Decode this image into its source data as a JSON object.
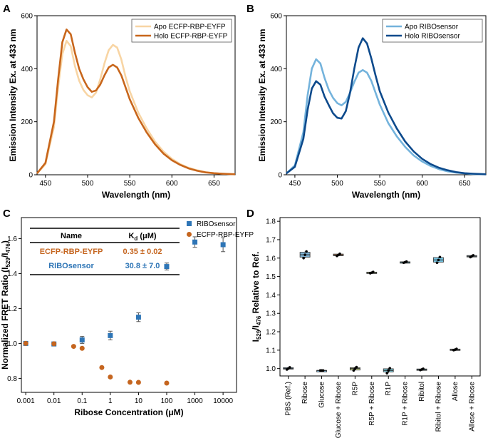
{
  "colors": {
    "apo_ecfp": "#f8d5a4",
    "holo_ecfp": "#c8661b",
    "apo_ribo": "#74b3dc",
    "holo_ribo": "#0d4a8c",
    "ribo_marker": "#2e75b6",
    "ecfp_marker": "#c5651f"
  },
  "chart_data": [
    {
      "panel": "A",
      "type": "line",
      "xlabel": "Wavelength (nm)",
      "ylabel": "Emission Intensity Ex. at 433 nm",
      "xlim": [
        440,
        675
      ],
      "ylim": [
        0,
        600
      ],
      "xticks": [
        "450",
        "500",
        "550",
        "600",
        "650"
      ],
      "yticks": [
        "0",
        "200",
        "400",
        "600"
      ],
      "legend": "top-right",
      "series": [
        {
          "name": "Apo ECFP-RBP-EYFP",
          "color": "apo_ecfp",
          "x": [
            440,
            450,
            460,
            465,
            470,
            475,
            480,
            485,
            490,
            495,
            500,
            505,
            510,
            515,
            520,
            525,
            530,
            535,
            540,
            545,
            550,
            560,
            570,
            580,
            590,
            600,
            610,
            620,
            630,
            640,
            650,
            660,
            675
          ],
          "y": [
            5,
            40,
            180,
            330,
            455,
            505,
            485,
            410,
            355,
            320,
            300,
            292,
            310,
            360,
            420,
            470,
            490,
            480,
            435,
            370,
            315,
            235,
            175,
            125,
            88,
            60,
            40,
            26,
            17,
            10,
            6,
            4,
            2
          ]
        },
        {
          "name": "Holo ECFP-RBP-EYFP",
          "color": "holo_ecfp",
          "x": [
            440,
            450,
            460,
            465,
            470,
            475,
            480,
            485,
            490,
            495,
            500,
            505,
            510,
            515,
            520,
            525,
            530,
            535,
            540,
            545,
            550,
            560,
            570,
            580,
            590,
            600,
            610,
            620,
            630,
            640,
            650,
            660,
            675
          ],
          "y": [
            5,
            45,
            200,
            360,
            500,
            548,
            530,
            460,
            400,
            360,
            330,
            313,
            318,
            340,
            375,
            405,
            415,
            405,
            375,
            330,
            285,
            215,
            160,
            115,
            80,
            55,
            37,
            24,
            15,
            9,
            6,
            4,
            2
          ]
        }
      ]
    },
    {
      "panel": "B",
      "type": "line",
      "xlabel": "Wavelength (nm)",
      "ylabel": "Emission Intensity Ex. at 433 nm",
      "xlim": [
        440,
        675
      ],
      "ylim": [
        0,
        600
      ],
      "xticks": [
        "450",
        "500",
        "550",
        "600",
        "650"
      ],
      "yticks": [
        "0",
        "200",
        "400",
        "600"
      ],
      "legend": "top-right",
      "series": [
        {
          "name": "Apo RIBOsensor",
          "color": "apo_ribo",
          "x": [
            440,
            450,
            460,
            465,
            470,
            475,
            480,
            485,
            490,
            495,
            500,
            505,
            510,
            515,
            520,
            525,
            530,
            535,
            540,
            545,
            550,
            560,
            570,
            580,
            590,
            600,
            610,
            620,
            630,
            640,
            650,
            660,
            675
          ],
          "y": [
            5,
            35,
            160,
            300,
            400,
            436,
            420,
            365,
            320,
            290,
            270,
            262,
            275,
            310,
            350,
            385,
            395,
            385,
            355,
            310,
            265,
            195,
            145,
            105,
            73,
            50,
            33,
            21,
            13,
            8,
            5,
            3,
            2
          ]
        },
        {
          "name": "Holo RIBOsensor",
          "color": "holo_ribo",
          "x": [
            440,
            450,
            460,
            465,
            470,
            475,
            480,
            485,
            490,
            495,
            500,
            505,
            510,
            515,
            520,
            525,
            530,
            535,
            540,
            545,
            550,
            560,
            570,
            580,
            590,
            600,
            610,
            620,
            630,
            640,
            650,
            660,
            675
          ],
          "y": [
            5,
            30,
            135,
            245,
            325,
            353,
            340,
            295,
            262,
            232,
            215,
            212,
            240,
            310,
            400,
            480,
            515,
            495,
            440,
            375,
            315,
            235,
            175,
            125,
            88,
            60,
            40,
            26,
            17,
            10,
            6,
            4,
            2
          ]
        }
      ]
    },
    {
      "panel": "C",
      "type": "scatter",
      "xlabel": "Ribose Concentration (μM)",
      "ylabel_main": "Normalized FRET Ratio (I",
      "ylabel_sub1": "529",
      "ylabel_mid": "/I",
      "ylabel_sub2": "476",
      "ylabel_end": ")",
      "xscale": "log",
      "xlim": [
        0.0007,
        30000
      ],
      "ylim": [
        0.72,
        1.72
      ],
      "xticks": [
        "0.001",
        "0.01",
        "0.1",
        "1",
        "10",
        "100",
        "1000",
        "10000"
      ],
      "yticks": [
        "0.8",
        "1.0",
        "1.2",
        "1.4",
        "1.6"
      ],
      "legend": "top-right",
      "table": {
        "header_name": "Name",
        "header_kd_main": "K",
        "header_kd_sub": "d",
        "header_kd_end": " (μM)",
        "rows": [
          {
            "name": "ECFP-RBP-EYFP",
            "kd": "0.35 ± 0.02",
            "color": "ecfp_marker"
          },
          {
            "name": "RIBOsensor",
            "kd": "30.8 ± 7.0",
            "color": "ribo_marker"
          }
        ]
      },
      "series": [
        {
          "name": "RIBOsensor",
          "marker": "square",
          "color": "ribo_marker",
          "x": [
            0.001,
            0.01,
            0.1,
            1,
            10,
            100,
            1000,
            10000
          ],
          "y": [
            1.0,
            0.997,
            1.02,
            1.045,
            1.15,
            1.44,
            1.58,
            1.565
          ],
          "err": [
            0.005,
            0.01,
            0.02,
            0.025,
            0.025,
            0.02,
            0.03,
            0.04
          ]
        },
        {
          "name": "ECFP-RBP-EYFP",
          "marker": "circle",
          "color": "ecfp_marker",
          "x": [
            0.001,
            0.01,
            0.05,
            0.1,
            0.5,
            1,
            5,
            10,
            100
          ],
          "y": [
            1.0,
            0.998,
            0.983,
            0.972,
            0.862,
            0.808,
            0.778,
            0.777,
            0.773
          ],
          "err": [
            0,
            0,
            0,
            0,
            0,
            0,
            0,
            0,
            0
          ]
        }
      ]
    },
    {
      "panel": "D",
      "type": "box",
      "ylabel_main": "I",
      "ylabel_sub1": "529",
      "ylabel_mid": "/I",
      "ylabel_sub2": "476",
      "ylabel_end": " Relative to Ref.",
      "ylim": [
        0.96,
        1.82
      ],
      "yticks": [
        "1.0",
        "1.1",
        "1.2",
        "1.3",
        "1.4",
        "1.5",
        "1.6",
        "1.7",
        "1.8"
      ],
      "categories": [
        "PBS (Ref.)",
        "Ribose",
        "Glucose",
        "Glucose + Ribose",
        "R5P",
        "R5P + Ribose",
        "R1P",
        "R1P + Ribose",
        "Ribitol",
        "Ribitol + Ribose",
        "Allose",
        "Allose + Ribose"
      ],
      "boxes": [
        {
          "min": 0.995,
          "q1": 0.997,
          "median": 1.0,
          "q3": 1.005,
          "max": 1.007,
          "color": "#7fb3d5"
        },
        {
          "min": 1.6,
          "q1": 1.605,
          "median": 1.618,
          "q3": 1.632,
          "max": 1.636,
          "color": "#7fb3d5"
        },
        {
          "min": 0.99,
          "q1": 0.99,
          "median": 0.99,
          "q3": 0.99,
          "max": 0.99,
          "color": "#7fb3d5"
        },
        {
          "min": 1.612,
          "q1": 1.613,
          "median": 1.617,
          "q3": 1.622,
          "max": 1.623,
          "color": "#e9a77c"
        },
        {
          "min": 0.99,
          "q1": 0.992,
          "median": 1.0,
          "q3": 1.005,
          "max": 1.008,
          "color": "#d7e79a"
        },
        {
          "min": 1.518,
          "q1": 1.519,
          "median": 1.521,
          "q3": 1.524,
          "max": 1.525,
          "color": "#d7e79a"
        },
        {
          "min": 0.975,
          "q1": 0.982,
          "median": 0.99,
          "q3": 0.999,
          "max": 1.002,
          "color": "#7ec8d6"
        },
        {
          "min": 1.575,
          "q1": 1.576,
          "median": 1.578,
          "q3": 1.58,
          "max": 1.581,
          "color": "#7ec8d6"
        },
        {
          "min": 0.992,
          "q1": 0.993,
          "median": 0.995,
          "q3": 0.998,
          "max": 0.999,
          "color": "#7ec8d6"
        },
        {
          "min": 1.575,
          "q1": 1.578,
          "median": 1.59,
          "q3": 1.603,
          "max": 1.606,
          "color": "#76c5e3"
        },
        {
          "min": 1.1,
          "q1": 1.101,
          "median": 1.103,
          "q3": 1.106,
          "max": 1.107,
          "color": "#cfcfcf"
        },
        {
          "min": 1.605,
          "q1": 1.606,
          "median": 1.61,
          "q3": 1.614,
          "max": 1.615,
          "color": "#bfe3ec"
        }
      ]
    }
  ]
}
